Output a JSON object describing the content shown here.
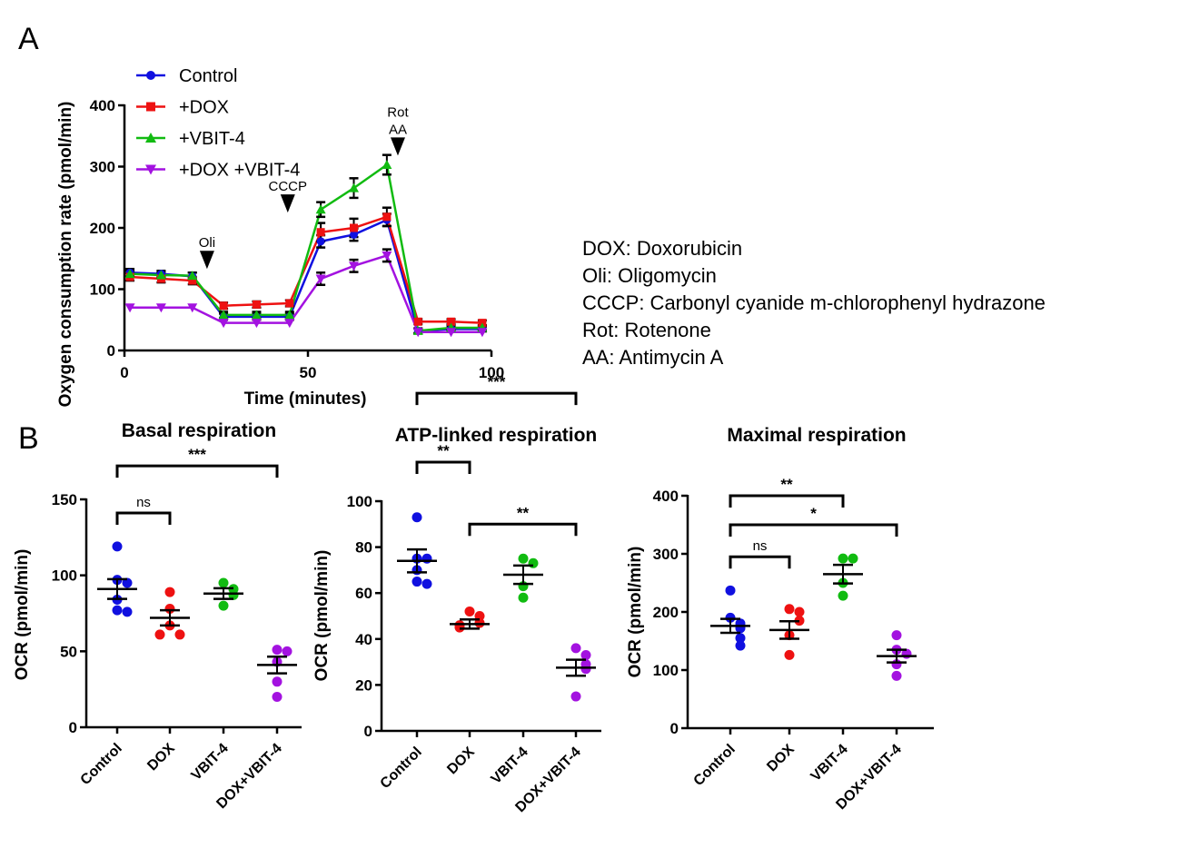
{
  "panels": {
    "a": "A",
    "b": "B"
  },
  "glossary": [
    "DOX: Doxorubicin",
    "Oli: Oligomycin",
    "CCCP: Carbonyl cyanide m-chlorophenyl hydrazone",
    "Rot: Rotenone",
    "AA: Antimycin A"
  ],
  "colors": {
    "Control": "#1010e0",
    "DOX": "#ee1111",
    "VBIT": "#11bb11",
    "DOXVBIT": "#a312e0"
  },
  "chart_data": [
    {
      "type": "line",
      "title": "",
      "xlabel": "Time (minutes)",
      "ylabel": "Oxygen consumption rate (pmol/min)",
      "xlim": [
        0,
        100
      ],
      "ylim": [
        0,
        400
      ],
      "xticks": [
        0,
        50,
        100
      ],
      "yticks": [
        0,
        100,
        200,
        300,
        400
      ],
      "x": [
        1.5,
        10,
        18.5,
        27,
        36,
        45,
        53.5,
        62.5,
        71.5,
        80,
        89,
        97.5
      ],
      "series": [
        {
          "name": "Control",
          "marker": "circle",
          "colorKey": "Control",
          "values": [
            127,
            125,
            121,
            55,
            55,
            55,
            178,
            189,
            213,
            32,
            35,
            35
          ],
          "errors": [
            6,
            5,
            6,
            5,
            5,
            5,
            10,
            10,
            10,
            4,
            4,
            4
          ]
        },
        {
          "name": "+DOX",
          "marker": "square",
          "colorKey": "DOX",
          "values": [
            120,
            117,
            114,
            73,
            75,
            77,
            193,
            200,
            218,
            47,
            47,
            45
          ],
          "errors": [
            6,
            6,
            6,
            5,
            5,
            5,
            15,
            15,
            15,
            4,
            4,
            4
          ]
        },
        {
          "name": "+VBIT-4",
          "marker": "triangle-up",
          "colorKey": "VBIT",
          "values": [
            125,
            123,
            122,
            58,
            58,
            58,
            230,
            265,
            303,
            32,
            37,
            37
          ],
          "errors": [
            5,
            5,
            5,
            5,
            5,
            5,
            12,
            16,
            16,
            4,
            4,
            4
          ]
        },
        {
          "name": "+DOX  +VBIT-4",
          "marker": "triangle-down",
          "colorKey": "DOXVBIT",
          "values": [
            70,
            70,
            70,
            45,
            45,
            45,
            117,
            138,
            155,
            30,
            30,
            30
          ],
          "errors": [
            3,
            3,
            3,
            3,
            3,
            3,
            10,
            10,
            10,
            3,
            3,
            3
          ]
        }
      ],
      "injections": [
        {
          "label": [
            "Oli"
          ],
          "x": 22.5,
          "y": 133
        },
        {
          "label": [
            "CCCP"
          ],
          "x": 44.5,
          "y": 225
        },
        {
          "label": [
            "Rot",
            "AA"
          ],
          "x": 74.5,
          "y": 318
        }
      ],
      "legend": "top-left"
    },
    {
      "type": "scatter",
      "title": "Basal respiration",
      "ylabel": "OCR (pmol/min)",
      "ylim": [
        0,
        150
      ],
      "yticks": [
        0,
        50,
        100,
        150
      ],
      "categories": [
        "Control",
        "DOX",
        "VBIT-4",
        "DOX+VBIT-4"
      ],
      "groups": [
        {
          "name": "Control",
          "colorKey": "Control",
          "points": [
            119,
            97,
            95,
            84,
            77,
            76
          ],
          "mean": 91,
          "sem": 6.5
        },
        {
          "name": "DOX",
          "colorKey": "DOX",
          "points": [
            89,
            78,
            67,
            61,
            61
          ],
          "mean": 72,
          "sem": 5
        },
        {
          "name": "VBIT-4",
          "colorKey": "VBIT",
          "points": [
            95,
            91,
            87,
            80
          ],
          "mean": 88,
          "sem": 3.5
        },
        {
          "name": "DOX+VBIT-4",
          "colorKey": "DOXVBIT",
          "points": [
            51,
            50,
            43,
            30,
            20
          ],
          "mean": 41,
          "sem": 5.5
        }
      ],
      "brackets": [
        {
          "from": 0,
          "to": 1,
          "label": "ns",
          "y": 141,
          "bold": false
        },
        {
          "from": 0,
          "to": 3,
          "label": "***",
          "y": 172,
          "bold": true
        }
      ]
    },
    {
      "type": "scatter",
      "title": "ATP-linked respiration",
      "ylabel": "OCR (pmol/min)",
      "ylim": [
        0,
        100
      ],
      "yticks": [
        0,
        20,
        40,
        60,
        80,
        100
      ],
      "categories": [
        "Control",
        "DOX",
        "VBIT-4",
        "DOX+VBIT-4"
      ],
      "groups": [
        {
          "name": "Control",
          "colorKey": "Control",
          "points": [
            93,
            75,
            75,
            70,
            65,
            64
          ],
          "mean": 74,
          "sem": 5
        },
        {
          "name": "DOX",
          "colorKey": "DOX",
          "points": [
            52,
            50,
            47,
            46,
            45
          ],
          "mean": 46.5,
          "sem": 2
        },
        {
          "name": "VBIT-4",
          "colorKey": "VBIT",
          "points": [
            75,
            73,
            63,
            58
          ],
          "mean": 68,
          "sem": 4
        },
        {
          "name": "DOX+VBIT-4",
          "colorKey": "DOXVBIT",
          "points": [
            36,
            33,
            29,
            27,
            15
          ],
          "mean": 27.5,
          "sem": 3.5
        }
      ],
      "brackets": [
        {
          "from": 0,
          "to": 1,
          "label": "**",
          "y": 117,
          "bold": true
        },
        {
          "from": 1,
          "to": 3,
          "label": "**",
          "y": 90,
          "bold": true
        },
        {
          "from": 0,
          "to": 3,
          "label": "***",
          "y": 147,
          "bold": true
        }
      ]
    },
    {
      "type": "scatter",
      "title": "Maximal respiration",
      "ylabel": "OCR (pmol/min)",
      "ylim": [
        0,
        400
      ],
      "yticks": [
        0,
        100,
        200,
        300,
        400
      ],
      "categories": [
        "Control",
        "DOX",
        "VBIT-4",
        "DOX+VBIT-4"
      ],
      "groups": [
        {
          "name": "Control",
          "colorKey": "Control",
          "points": [
            237,
            190,
            180,
            172,
            155,
            142
          ],
          "mean": 176,
          "sem": 12
        },
        {
          "name": "DOX",
          "colorKey": "DOX",
          "points": [
            205,
            200,
            185,
            160,
            126
          ],
          "mean": 169,
          "sem": 15
        },
        {
          "name": "VBIT-4",
          "colorKey": "VBIT",
          "points": [
            292,
            292,
            250,
            228
          ],
          "mean": 265,
          "sem": 16
        },
        {
          "name": "DOX+VBIT-4",
          "colorKey": "DOXVBIT",
          "points": [
            160,
            135,
            128,
            110,
            90
          ],
          "mean": 124,
          "sem": 11
        }
      ],
      "brackets": [
        {
          "from": 0,
          "to": 1,
          "label": "ns",
          "y": 295,
          "bold": false
        },
        {
          "from": 0,
          "to": 3,
          "label": "*",
          "y": 350,
          "bold": true
        },
        {
          "from": 0,
          "to": 2,
          "label": "**",
          "y": 400,
          "bold": true
        }
      ]
    }
  ]
}
